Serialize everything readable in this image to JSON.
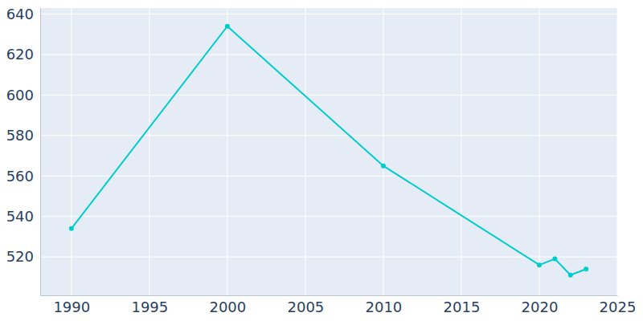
{
  "chart_data": {
    "type": "line",
    "x": [
      1990,
      2000,
      2010,
      2020,
      2021,
      2022,
      2023
    ],
    "values": [
      534,
      634,
      565,
      516,
      519,
      511,
      514
    ],
    "color": "#00cccc",
    "marker": "circle",
    "xlim": [
      1988,
      2025
    ],
    "ylim": [
      501,
      643
    ],
    "xticks": [
      1990,
      1995,
      2000,
      2005,
      2010,
      2015,
      2020,
      2025
    ],
    "yticks": [
      520,
      540,
      560,
      580,
      600,
      620,
      640
    ],
    "grid": true
  }
}
